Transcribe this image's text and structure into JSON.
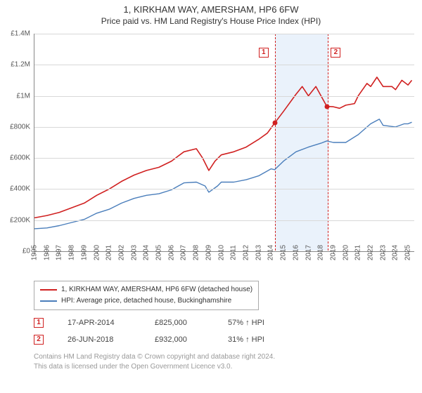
{
  "title": "1, KIRKHAM WAY, AMERSHAM, HP6 6FW",
  "subtitle": "Price paid vs. HM Land Registry's House Price Index (HPI)",
  "chart": {
    "type": "line",
    "x_domain": [
      1995,
      2025.5
    ],
    "y_domain": [
      0,
      1400000
    ],
    "y_ticks": [
      0,
      200000,
      400000,
      600000,
      800000,
      1000000,
      1200000,
      1400000
    ],
    "y_tick_labels": [
      "£0",
      "£200K",
      "£400K",
      "£600K",
      "£800K",
      "£1M",
      "£1.2M",
      "£1.4M"
    ],
    "x_ticks": [
      1995,
      1996,
      1997,
      1998,
      1999,
      2000,
      2001,
      2002,
      2003,
      2004,
      2005,
      2006,
      2007,
      2008,
      2009,
      2010,
      2011,
      2012,
      2013,
      2014,
      2015,
      2016,
      2017,
      2018,
      2019,
      2020,
      2021,
      2022,
      2023,
      2024,
      2025
    ],
    "grid_color": "#d8d8d8",
    "background_color": "#ffffff",
    "highlight_band": {
      "start": 2014.3,
      "end": 2018.5,
      "fill": "#eaf2fb",
      "border_color": "#d02020"
    },
    "series": [
      {
        "name": "property",
        "label": "1, KIRKHAM WAY, AMERSHAM, HP6 6FW (detached house)",
        "color": "#d02020",
        "line_width": 1.6,
        "points": [
          [
            1995,
            215000
          ],
          [
            1996,
            230000
          ],
          [
            1997,
            250000
          ],
          [
            1998,
            280000
          ],
          [
            1999,
            310000
          ],
          [
            2000,
            360000
          ],
          [
            2001,
            400000
          ],
          [
            2002,
            450000
          ],
          [
            2003,
            490000
          ],
          [
            2004,
            520000
          ],
          [
            2005,
            540000
          ],
          [
            2006,
            580000
          ],
          [
            2007,
            640000
          ],
          [
            2008,
            660000
          ],
          [
            2008.5,
            600000
          ],
          [
            2009,
            520000
          ],
          [
            2009.5,
            580000
          ],
          [
            2010,
            620000
          ],
          [
            2011,
            640000
          ],
          [
            2012,
            670000
          ],
          [
            2013,
            720000
          ],
          [
            2013.7,
            760000
          ],
          [
            2014.29,
            825000
          ],
          [
            2015,
            900000
          ],
          [
            2016,
            1010000
          ],
          [
            2016.5,
            1060000
          ],
          [
            2017,
            1000000
          ],
          [
            2017.6,
            1060000
          ],
          [
            2018.48,
            932000
          ],
          [
            2019,
            930000
          ],
          [
            2019.5,
            920000
          ],
          [
            2020,
            940000
          ],
          [
            2020.7,
            950000
          ],
          [
            2021,
            1000000
          ],
          [
            2021.7,
            1080000
          ],
          [
            2022,
            1060000
          ],
          [
            2022.5,
            1120000
          ],
          [
            2023,
            1060000
          ],
          [
            2023.7,
            1060000
          ],
          [
            2024,
            1040000
          ],
          [
            2024.5,
            1100000
          ],
          [
            2025,
            1070000
          ],
          [
            2025.3,
            1100000
          ]
        ]
      },
      {
        "name": "hpi",
        "label": "HPI: Average price, detached house, Buckinghamshire",
        "color": "#4a7ebb",
        "line_width": 1.4,
        "points": [
          [
            1995,
            145000
          ],
          [
            1996,
            150000
          ],
          [
            1997,
            165000
          ],
          [
            1998,
            185000
          ],
          [
            1999,
            205000
          ],
          [
            2000,
            245000
          ],
          [
            2001,
            270000
          ],
          [
            2002,
            310000
          ],
          [
            2003,
            340000
          ],
          [
            2004,
            360000
          ],
          [
            2005,
            370000
          ],
          [
            2006,
            395000
          ],
          [
            2007,
            440000
          ],
          [
            2008,
            445000
          ],
          [
            2008.7,
            420000
          ],
          [
            2009,
            380000
          ],
          [
            2009.7,
            420000
          ],
          [
            2010,
            445000
          ],
          [
            2011,
            445000
          ],
          [
            2012,
            460000
          ],
          [
            2013,
            485000
          ],
          [
            2014,
            530000
          ],
          [
            2014.29,
            525000
          ],
          [
            2015,
            580000
          ],
          [
            2016,
            640000
          ],
          [
            2017,
            670000
          ],
          [
            2018,
            695000
          ],
          [
            2018.48,
            710000
          ],
          [
            2019,
            700000
          ],
          [
            2020,
            700000
          ],
          [
            2021,
            750000
          ],
          [
            2022,
            820000
          ],
          [
            2022.7,
            850000
          ],
          [
            2023,
            810000
          ],
          [
            2024,
            800000
          ],
          [
            2024.7,
            820000
          ],
          [
            2025,
            820000
          ],
          [
            2025.3,
            830000
          ]
        ]
      }
    ],
    "transaction_markers": [
      {
        "n": "1",
        "x": 2014.29,
        "y": 825000,
        "badge_x": 2013.4,
        "badge_y": 1280000
      },
      {
        "n": "2",
        "x": 2018.48,
        "y": 932000,
        "badge_x": 2019.2,
        "badge_y": 1280000
      }
    ]
  },
  "legend": {
    "border_color": "#aaa",
    "items": [
      {
        "color": "#d02020",
        "label": "1, KIRKHAM WAY, AMERSHAM, HP6 6FW (detached house)"
      },
      {
        "color": "#4a7ebb",
        "label": "HPI: Average price, detached house, Buckinghamshire"
      }
    ]
  },
  "transactions": [
    {
      "n": "1",
      "date": "17-APR-2014",
      "price": "£825,000",
      "delta": "57% ↑ HPI"
    },
    {
      "n": "2",
      "date": "26-JUN-2018",
      "price": "£932,000",
      "delta": "31% ↑ HPI"
    }
  ],
  "footnote_line1": "Contains HM Land Registry data © Crown copyright and database right 2024.",
  "footnote_line2": "This data is licensed under the Open Government Licence v3.0."
}
